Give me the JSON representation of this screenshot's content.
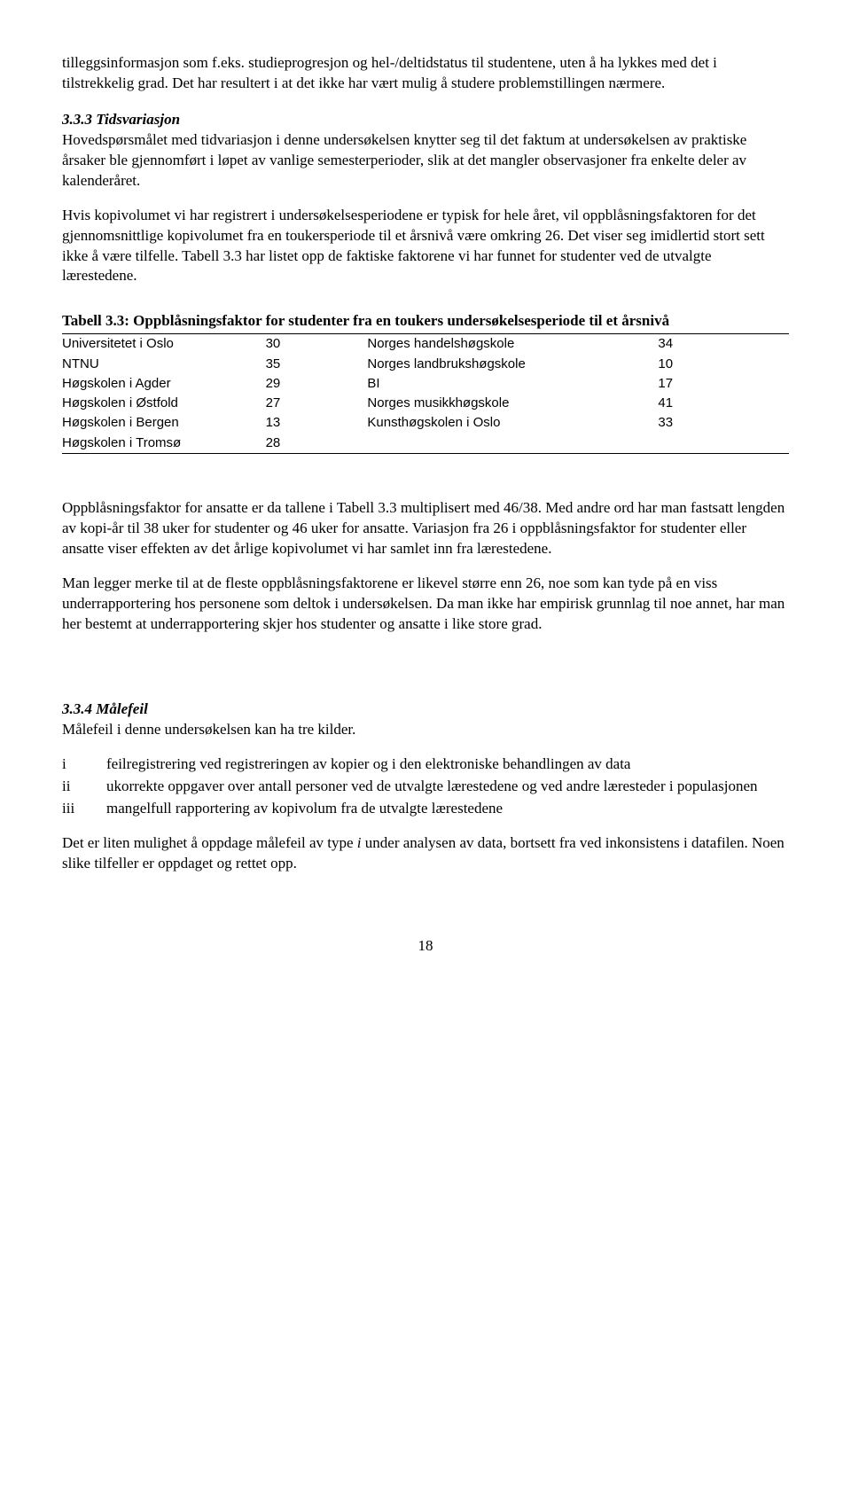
{
  "para1": "tilleggsinformasjon som f.eks. studieprogresjon og hel-/deltidstatus til studentene, uten å ha lykkes med det i tilstrekkelig grad. Det har resultert i at det ikke har vært mulig å studere problemstillingen nærmere.",
  "sec333_title": "3.3.3 Tidsvariasjon",
  "para2": "Hovedspørsmålet med tidvariasjon i denne undersøkelsen knytter seg til det faktum at undersøkelsen av praktiske årsaker ble gjennomført i løpet av vanlige semesterperioder, slik at det mangler observasjoner fra enkelte deler av kalenderåret.",
  "para3": "Hvis kopivolumet vi har registrert i undersøkelsesperiodene er typisk for hele året, vil oppblåsningsfaktoren for det gjennomsnittlige kopivolumet fra en toukersperiode til et årsnivå være omkring 26. Det viser seg imidlertid stort sett ikke å være tilfelle. Tabell 3.3 har listet opp de faktiske faktorene vi har funnet for studenter ved de utvalgte lærestedene.",
  "table_caption": "Tabell 3.3: Oppblåsningsfaktor for studenter fra en toukers undersøkelsesperiode til et årsnivå",
  "table_rows": [
    {
      "n1": "Universitetet i Oslo",
      "v1": "30",
      "n2": "Norges handelshøgskole",
      "v2": "34"
    },
    {
      "n1": "NTNU",
      "v1": "35",
      "n2": "Norges landbrukshøgskole",
      "v2": "10"
    },
    {
      "n1": "Høgskolen i Agder",
      "v1": "29",
      "n2": "BI",
      "v2": "17"
    },
    {
      "n1": "Høgskolen i Østfold",
      "v1": "27",
      "n2": "Norges musikkhøgskole",
      "v2": "41"
    },
    {
      "n1": "Høgskolen i Bergen",
      "v1": "13",
      "n2": "Kunsthøgskolen i Oslo",
      "v2": "33"
    },
    {
      "n1": "Høgskolen i Tromsø",
      "v1": "28",
      "n2": "",
      "v2": ""
    }
  ],
  "para4": "Oppblåsningsfaktor for ansatte er da tallene i Tabell 3.3 multiplisert med 46/38. Med andre ord har man fastsatt lengden av kopi-år til 38 uker for studenter og 46 uker for ansatte. Variasjon fra 26 i oppblåsningsfaktor for studenter eller ansatte viser effekten av det årlige kopivolumet vi har samlet inn fra lærestedene.",
  "para5": "Man legger merke til at de fleste oppblåsningsfaktorene er likevel større enn 26, noe som kan tyde på en viss underrapportering hos personene som deltok i undersøkelsen. Da man ikke har empirisk grunnlag til noe annet, har man her bestemt at underrapportering skjer hos studenter og ansatte i like store grad.",
  "sec334_title": "3.3.4 Målefeil",
  "para6": "Målefeil i denne undersøkelsen kan ha tre kilder.",
  "list": [
    {
      "m": "i",
      "t": "feilregistrering ved registreringen av kopier og i den elektroniske behandlingen av data"
    },
    {
      "m": "ii",
      "t": "ukorrekte oppgaver over antall personer ved de utvalgte lærestedene og ved andre læresteder i populasjonen"
    },
    {
      "m": "iii",
      "t": "mangelfull rapportering av kopivolum fra de utvalgte lærestedene"
    }
  ],
  "para7a": "Det er liten mulighet å oppdage målefeil av type ",
  "para7i": "i",
  "para7b": " under analysen av data, bortsett fra ved inkonsistens i datafilen. Noen slike tilfeller er oppdaget og rettet opp.",
  "page_number": "18"
}
